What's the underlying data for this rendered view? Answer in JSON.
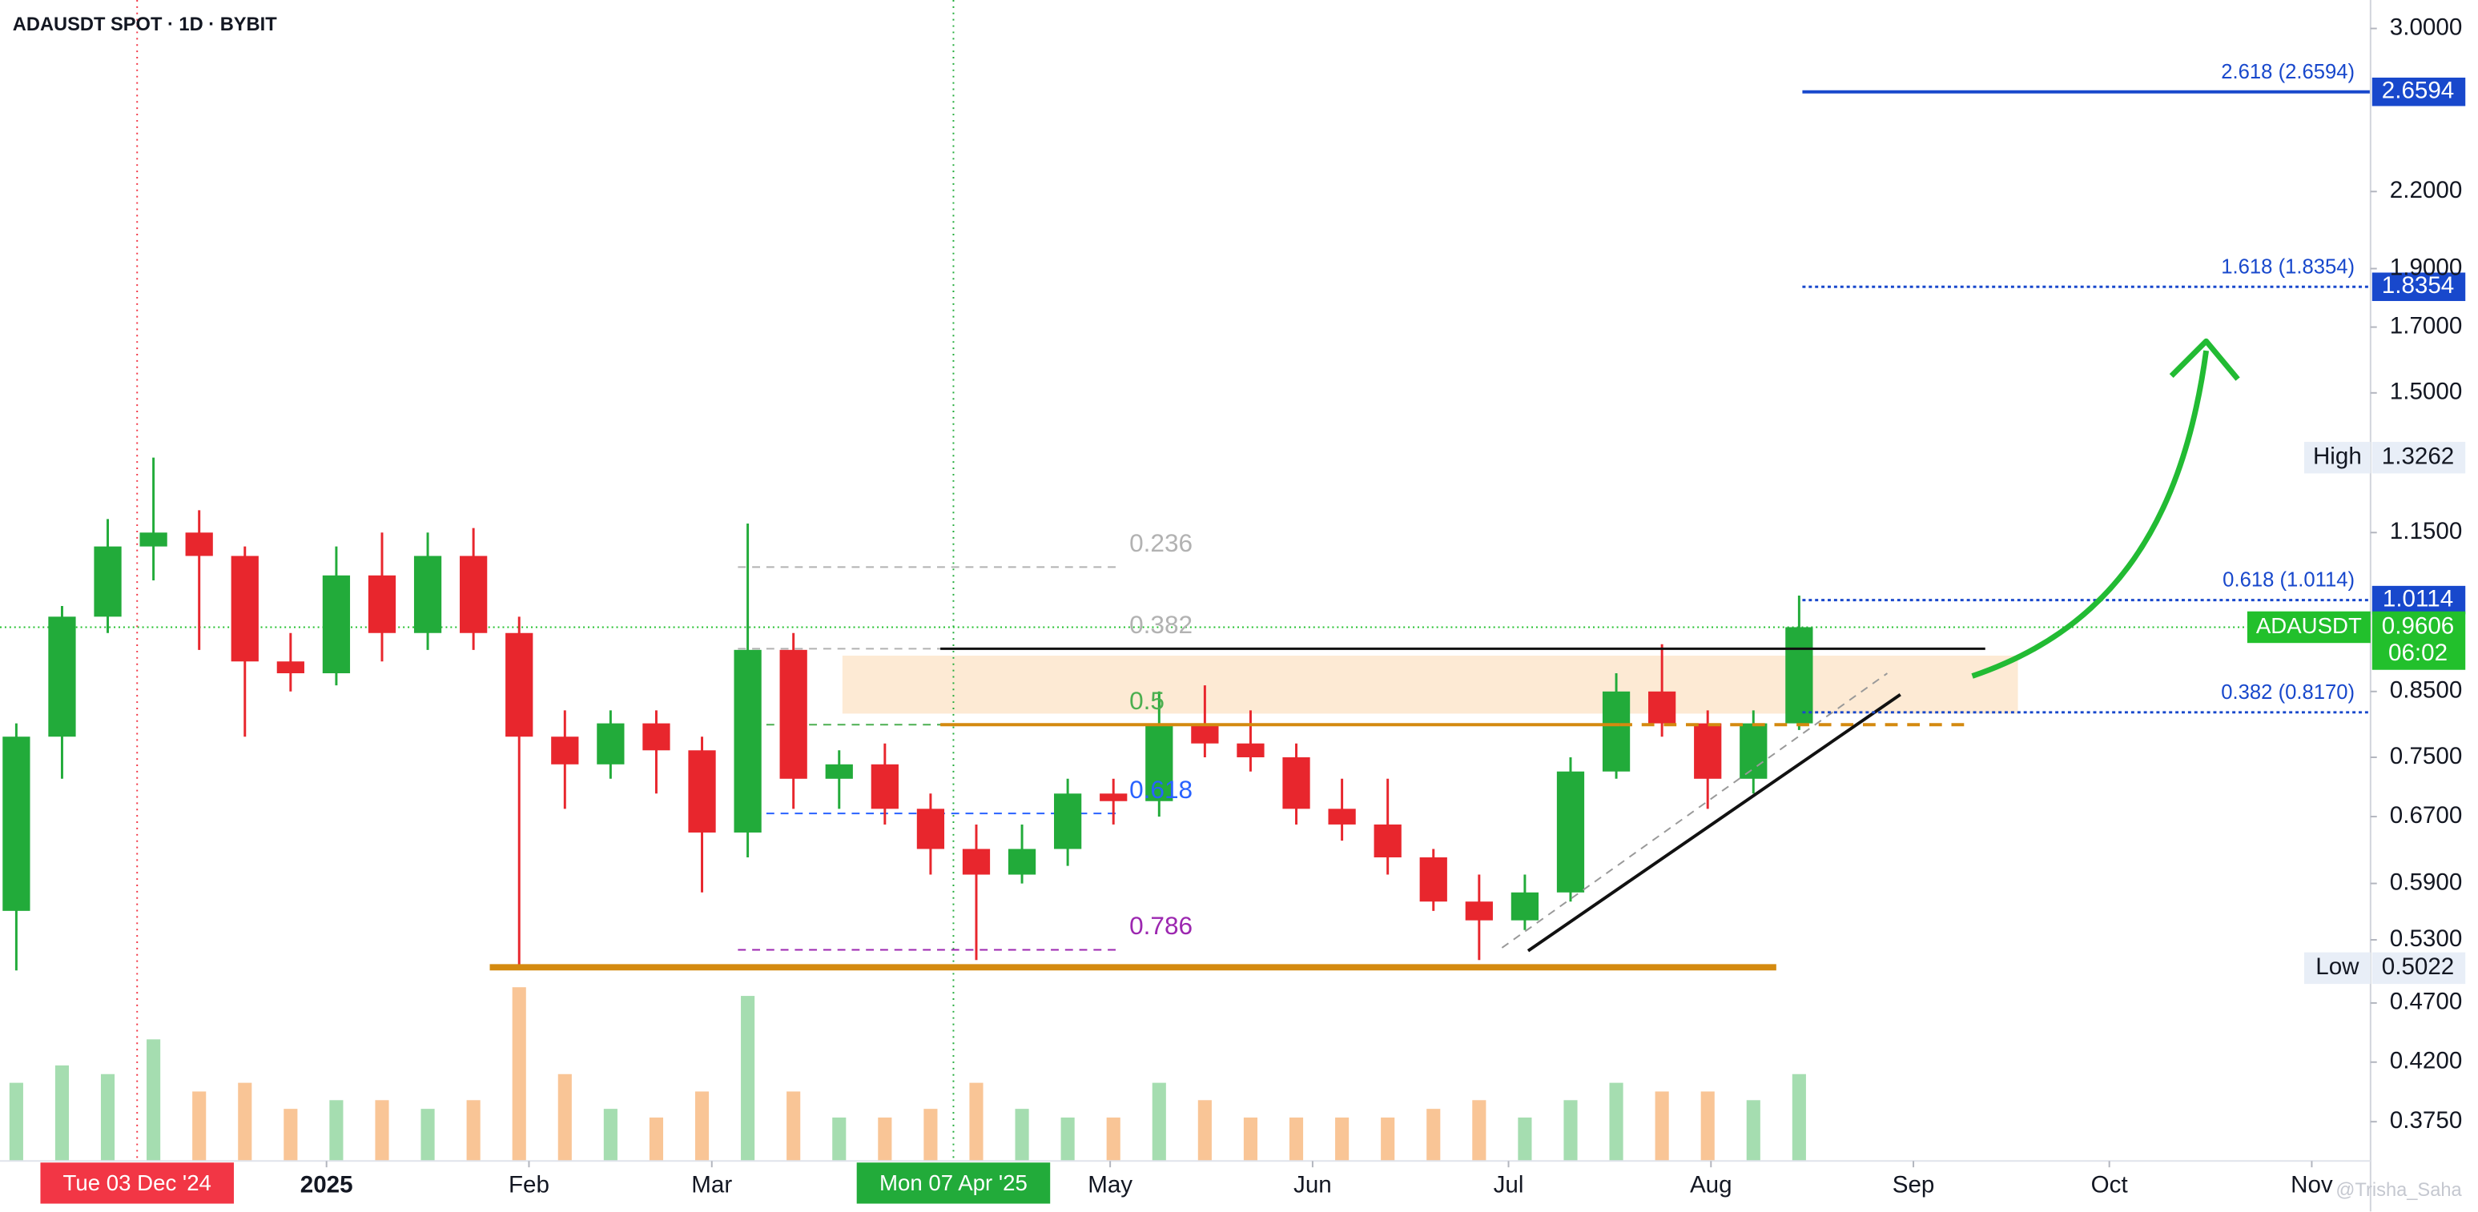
{
  "chart_data": {
    "type": "candlestick",
    "title": "ADAUSDT SPOT · 1D · BYBIT",
    "x": [
      "2024-11-11",
      "2024-11-18",
      "2024-11-25",
      "2024-12-02",
      "2024-12-09",
      "2024-12-16",
      "2024-12-23",
      "2024-12-30",
      "2025-01-06",
      "2025-01-13",
      "2025-01-20",
      "2025-01-27",
      "2025-02-03",
      "2025-02-10",
      "2025-02-17",
      "2025-02-24",
      "2025-03-03",
      "2025-03-10",
      "2025-03-17",
      "2025-03-24",
      "2025-03-31",
      "2025-04-07",
      "2025-04-14",
      "2025-04-21",
      "2025-04-28",
      "2025-05-05",
      "2025-05-12",
      "2025-05-19",
      "2025-05-26",
      "2025-06-02",
      "2025-06-09",
      "2025-06-16",
      "2025-06-23",
      "2025-06-30",
      "2025-07-07",
      "2025-07-14",
      "2025-07-21",
      "2025-07-28",
      "2025-08-04",
      "2025-08-11"
    ],
    "open": [
      0.56,
      0.78,
      0.98,
      1.12,
      1.15,
      1.1,
      0.9,
      0.88,
      1.06,
      0.95,
      1.1,
      0.95,
      0.78,
      0.74,
      0.8,
      0.76,
      0.65,
      0.92,
      0.72,
      0.74,
      0.68,
      0.63,
      0.6,
      0.63,
      0.7,
      0.69,
      0.8,
      0.77,
      0.75,
      0.68,
      0.66,
      0.62,
      0.57,
      0.55,
      0.58,
      0.73,
      0.85,
      0.8,
      0.72,
      0.8
    ],
    "high": [
      0.8,
      1.0,
      1.18,
      1.3262,
      1.2,
      1.12,
      0.95,
      1.12,
      1.15,
      1.15,
      1.16,
      0.98,
      0.82,
      0.82,
      0.82,
      0.78,
      1.17,
      0.95,
      0.76,
      0.77,
      0.7,
      0.66,
      0.66,
      0.72,
      0.72,
      0.85,
      0.86,
      0.82,
      0.77,
      0.72,
      0.72,
      0.63,
      0.6,
      0.6,
      0.75,
      0.88,
      0.93,
      0.82,
      0.82,
      1.02
    ],
    "low": [
      0.5,
      0.72,
      0.95,
      1.05,
      0.92,
      0.78,
      0.85,
      0.86,
      0.9,
      0.92,
      0.92,
      0.5022,
      0.68,
      0.72,
      0.7,
      0.58,
      0.62,
      0.68,
      0.68,
      0.66,
      0.6,
      0.51,
      0.59,
      0.61,
      0.66,
      0.67,
      0.75,
      0.73,
      0.66,
      0.64,
      0.6,
      0.56,
      0.51,
      0.54,
      0.57,
      0.72,
      0.78,
      0.68,
      0.7,
      0.79
    ],
    "close": [
      0.78,
      0.98,
      1.12,
      1.15,
      1.1,
      0.9,
      0.88,
      1.06,
      0.95,
      1.1,
      0.95,
      0.78,
      0.74,
      0.8,
      0.76,
      0.65,
      0.92,
      0.72,
      0.74,
      0.68,
      0.63,
      0.6,
      0.63,
      0.7,
      0.69,
      0.8,
      0.77,
      0.75,
      0.68,
      0.66,
      0.62,
      0.57,
      0.55,
      0.58,
      0.73,
      0.85,
      0.8,
      0.72,
      0.8,
      0.9606
    ],
    "volume": [
      45,
      55,
      50,
      70,
      40,
      45,
      30,
      35,
      35,
      30,
      35,
      100,
      50,
      30,
      25,
      40,
      95,
      40,
      25,
      25,
      30,
      45,
      30,
      25,
      25,
      45,
      35,
      25,
      25,
      25,
      25,
      30,
      35,
      25,
      35,
      45,
      40,
      40,
      35,
      50
    ],
    "up_color": "#22ab3a",
    "down_color": "#e8262d",
    "log_scale": true,
    "grid": false,
    "ylim": [
      0.348,
      3.167
    ],
    "yticks": [
      {
        "value": 3,
        "label": "3.0000"
      },
      {
        "value": 2.2,
        "label": "2.2000"
      },
      {
        "value": 1.9,
        "label": "1.9000"
      },
      {
        "value": 1.7,
        "label": "1.7000"
      },
      {
        "value": 1.5,
        "label": "1.5000"
      },
      {
        "value": 1.15,
        "label": "1.1500"
      },
      {
        "value": 0.85,
        "label": "0.8500"
      },
      {
        "value": 0.75,
        "label": "0.7500"
      },
      {
        "value": 0.67,
        "label": "0.6700"
      },
      {
        "value": 0.59,
        "label": "0.5900"
      },
      {
        "value": 0.53,
        "label": "0.5300"
      },
      {
        "value": 0.47,
        "label": "0.4700"
      },
      {
        "value": 0.42,
        "label": "0.4200"
      },
      {
        "value": 0.375,
        "label": "0.3750"
      }
    ],
    "xlim": [
      "2024-11-12",
      "2025-11-10"
    ],
    "xticks": [
      {
        "value": "2025-01-01",
        "label": "2025"
      },
      {
        "value": "2025-02-01",
        "label": "Feb"
      },
      {
        "value": "2025-03-01",
        "label": "Mar"
      },
      {
        "value": "2025-05-01",
        "label": "May"
      },
      {
        "value": "2025-06-01",
        "label": "Jun"
      },
      {
        "value": "2025-07-01",
        "label": "Jul"
      },
      {
        "value": "2025-08-01",
        "label": "Aug"
      },
      {
        "value": "2025-09-01",
        "label": "Sep"
      },
      {
        "value": "2025-10-01",
        "label": "Oct"
      },
      {
        "value": "2025-11-01",
        "label": "Nov"
      }
    ],
    "crosshairs": [
      {
        "x": "2024-12-03",
        "label": "Tue 03 Dec '24",
        "color": "#f23645"
      },
      {
        "x": "2025-04-07",
        "label": "Mon 07 Apr '25",
        "color": "#22ab3a"
      }
    ],
    "retracement": {
      "from": "2025-03-05",
      "to": "2025-05-02",
      "levels": [
        {
          "label": "0.236",
          "price": 1.077,
          "color": "#b2b2b2"
        },
        {
          "label": "0.382",
          "price": 0.922,
          "color": "#b2b2b2"
        },
        {
          "label": "0.5",
          "price": 0.798,
          "color": "#4caf50"
        },
        {
          "label": "0.618",
          "price": 0.674,
          "color": "#2962ff"
        },
        {
          "label": "0.786",
          "price": 0.52,
          "color": "#9c27b0"
        }
      ]
    },
    "extension": {
      "from": "2025-08-15",
      "to": "2025-11-10",
      "color": "#1848cc",
      "levels": [
        {
          "label": "2.618 (2.6594)",
          "price": 2.6594,
          "tag": true
        },
        {
          "label": "1.618 (1.8354)",
          "price": 1.8354,
          "tag": true
        },
        {
          "label": "0.618 (1.0114)",
          "price": 1.0114,
          "tag": true
        },
        {
          "label": "0.382 (0.8170)",
          "price": 0.817,
          "tag": false
        }
      ]
    },
    "zone": {
      "from": "2025-03-21",
      "to": "2025-09-17",
      "top": 0.91,
      "bottom": 0.815,
      "color": "#fde6cc"
    },
    "horizontal_lines": [
      {
        "price": 0.922,
        "from": "2025-04-05",
        "to": "2025-09-12",
        "color": "#111111",
        "width": 1.5,
        "dashed": false
      },
      {
        "price": 0.798,
        "from": "2025-04-05",
        "to": "2025-07-18",
        "color": "#d48a10",
        "width": 2,
        "dashed": false
      },
      {
        "price": 0.798,
        "from": "2025-07-18",
        "to": "2025-09-10",
        "color": "#d48a10",
        "width": 2,
        "dashed": true
      },
      {
        "price": 0.503,
        "from": "2025-01-26",
        "to": "2025-08-11",
        "color": "#d48a10",
        "width": 4,
        "dashed": false
      }
    ],
    "trendlines": [
      {
        "from": "2025-07-04",
        "to": "2025-08-30",
        "start": 0.519,
        "end": 0.845,
        "color": "#111111",
        "dashed": false
      },
      {
        "from": "2025-06-30",
        "to": "2025-08-28",
        "start": 0.522,
        "end": 0.88,
        "color": "#999999",
        "dashed": true
      }
    ],
    "price_tags": [
      {
        "label": "High",
        "price": 1.3262
      },
      {
        "label": "Low",
        "price": 0.5022
      }
    ],
    "last_price": {
      "symbol": "ADAUSDT",
      "price": 0.9606,
      "countdown": "06:02",
      "color": "#22c02c"
    },
    "watermark": "@Trisha_Saha"
  }
}
